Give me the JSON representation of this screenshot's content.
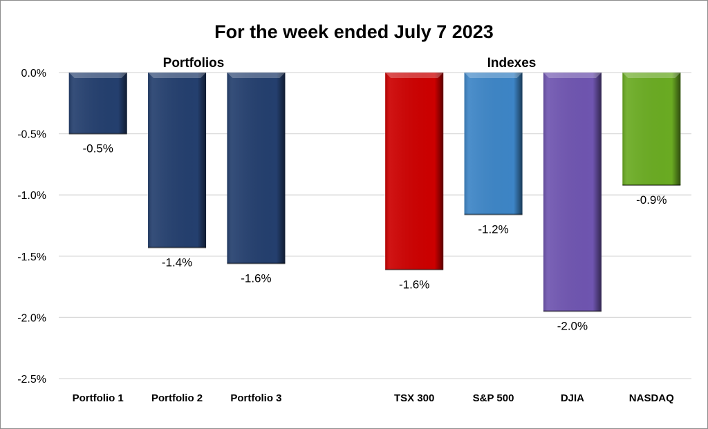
{
  "chart_data": {
    "type": "bar",
    "title": "For the week ended July 7 2023",
    "groups": [
      {
        "label": "Portfolios",
        "categories": [
          "Portfolio 1",
          "Portfolio 2",
          "Portfolio 3"
        ]
      },
      {
        "label": "Indexes",
        "categories": [
          "TSX 300",
          "S&P 500",
          "DJIA",
          "NASDAQ"
        ]
      }
    ],
    "categories": [
      "Portfolio 1",
      "Portfolio 2",
      "Portfolio 3",
      "",
      "TSX 300",
      "S&P 500",
      "DJIA",
      "NASDAQ"
    ],
    "values": [
      -0.5,
      -1.43,
      -1.56,
      null,
      -1.61,
      -1.16,
      -1.95,
      -0.92
    ],
    "data_labels": [
      "-0.5%",
      "-1.4%",
      "-1.6%",
      "",
      "-1.6%",
      "-1.2%",
      "-2.0%",
      "-0.9%"
    ],
    "colors": [
      "#243f6e",
      "#243f6e",
      "#243f6e",
      "",
      "#cc0000",
      "#3d85c6",
      "#6f55b0",
      "#6aab22"
    ],
    "ylim": [
      -2.5,
      0
    ],
    "yticks": [
      0,
      -0.5,
      -1.0,
      -1.5,
      -2.0,
      -2.5
    ],
    "ytick_labels": [
      "0.0%",
      "-0.5%",
      "-1.0%",
      "-1.5%",
      "-2.0%",
      "-2.5%"
    ],
    "xlabel": "",
    "ylabel": "",
    "grid": true
  }
}
